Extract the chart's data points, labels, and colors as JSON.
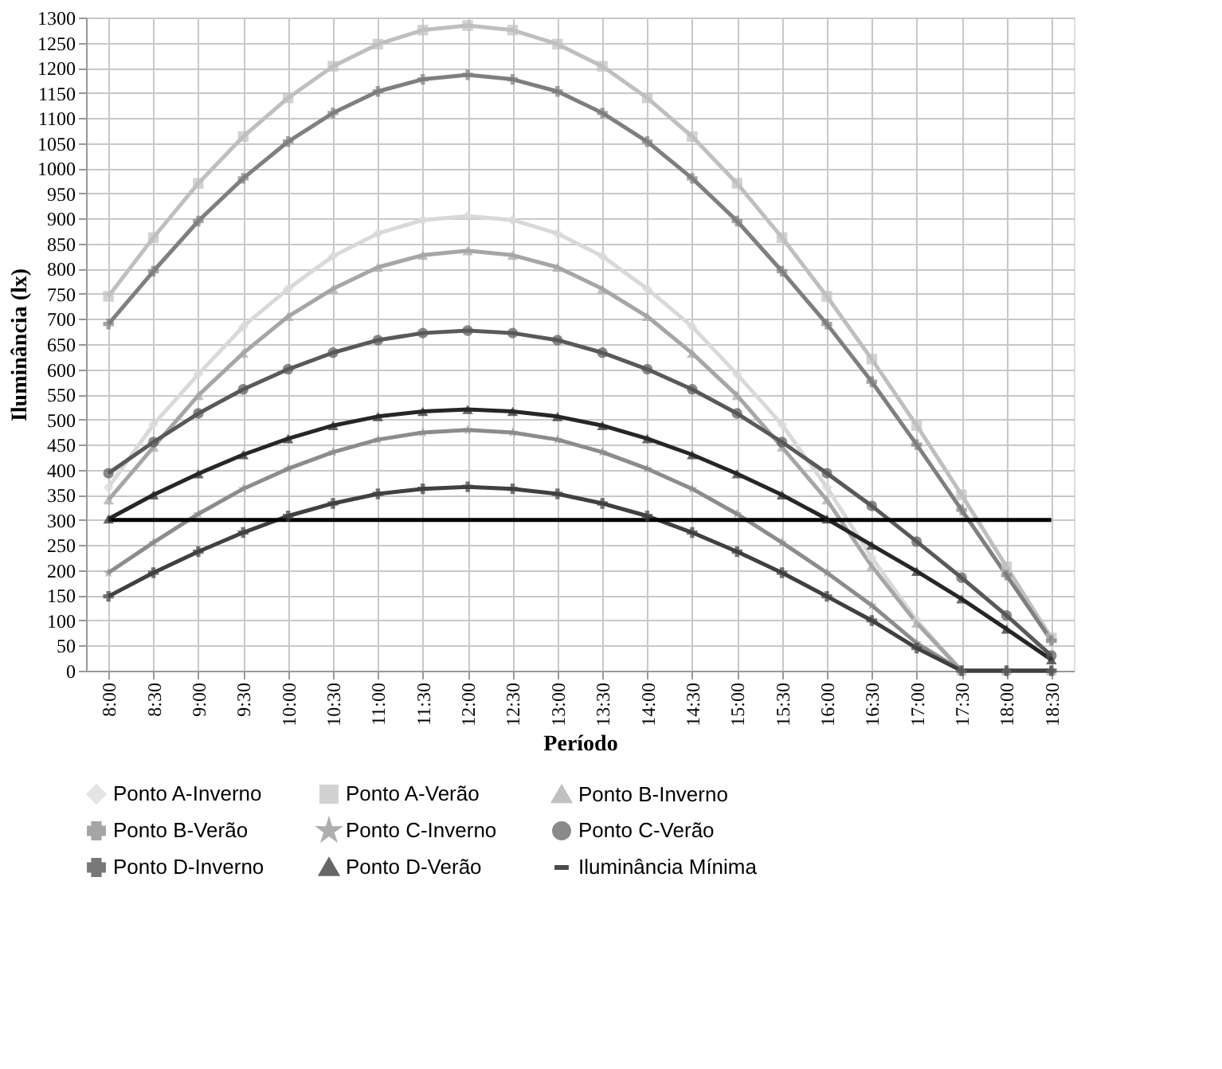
{
  "chart_data": {
    "type": "line",
    "xlabel": "Período",
    "ylabel": "Iluminância  (lx)",
    "categories": [
      "8:00",
      "8:30",
      "9:00",
      "9:30",
      "10:00",
      "10:30",
      "11:00",
      "11:30",
      "12:00",
      "12:30",
      "13:00",
      "13:30",
      "14:00",
      "14:30",
      "15:00",
      "15:30",
      "16:00",
      "16:30",
      "17:00",
      "17:30",
      "18:00",
      "18:30"
    ],
    "ylim": [
      0,
      1300
    ],
    "yticks": [
      0,
      50,
      100,
      150,
      200,
      250,
      300,
      350,
      400,
      450,
      500,
      550,
      600,
      650,
      700,
      750,
      800,
      850,
      900,
      950,
      1000,
      1050,
      1100,
      1150,
      1200,
      1250,
      1300
    ],
    "grid": true,
    "legend": "bottom",
    "series": [
      {
        "name": "Ponto A-Inverno",
        "color": "#d9d9d9",
        "marker": "diamond",
        "values": [
          365,
          490,
          590,
          685,
          760,
          825,
          870,
          897,
          905,
          897,
          870,
          825,
          760,
          685,
          590,
          490,
          365,
          225,
          100,
          0,
          0,
          0
        ]
      },
      {
        "name": "Ponto A-Verão",
        "color": "#bfbfbf",
        "marker": "square",
        "values": [
          745,
          862,
          970,
          1063,
          1140,
          1203,
          1247,
          1275,
          1284,
          1275,
          1247,
          1203,
          1140,
          1063,
          970,
          862,
          745,
          620,
          488,
          350,
          207,
          65
        ]
      },
      {
        "name": "Ponto B-Inverno",
        "color": "#a6a6a6",
        "marker": "triangle",
        "values": [
          340,
          445,
          548,
          632,
          705,
          760,
          803,
          827,
          836,
          827,
          803,
          760,
          705,
          632,
          548,
          445,
          340,
          208,
          95,
          0,
          0,
          0
        ]
      },
      {
        "name": "Ponto B-Verão",
        "color": "#7f7f7f",
        "marker": "cross",
        "values": [
          690,
          795,
          895,
          980,
          1053,
          1110,
          1153,
          1177,
          1186,
          1177,
          1153,
          1110,
          1053,
          980,
          895,
          795,
          690,
          575,
          450,
          320,
          190,
          60
        ]
      },
      {
        "name": "Ponto C-Inverno",
        "color": "#8c8c8c",
        "marker": "star",
        "values": [
          195,
          255,
          312,
          362,
          402,
          435,
          460,
          474,
          479,
          474,
          460,
          435,
          402,
          362,
          312,
          255,
          195,
          130,
          55,
          0,
          0,
          0
        ]
      },
      {
        "name": "Ponto C-Verão",
        "color": "#595959",
        "marker": "circle",
        "values": [
          393,
          455,
          512,
          560,
          600,
          633,
          658,
          672,
          677,
          672,
          658,
          633,
          600,
          560,
          512,
          455,
          393,
          328,
          257,
          185,
          110,
          30
        ]
      },
      {
        "name": "Ponto D-Inverno",
        "color": "#404040",
        "marker": "cross",
        "values": [
          148,
          195,
          237,
          275,
          308,
          333,
          352,
          362,
          366,
          362,
          352,
          333,
          308,
          275,
          237,
          195,
          148,
          100,
          45,
          0,
          0,
          0
        ]
      },
      {
        "name": "Ponto D-Verão",
        "color": "#262626",
        "marker": "triangle",
        "values": [
          302,
          350,
          392,
          430,
          462,
          488,
          506,
          516,
          520,
          516,
          506,
          488,
          462,
          430,
          392,
          350,
          302,
          250,
          198,
          143,
          83,
          22
        ]
      },
      {
        "name": "Iluminância Mínima",
        "color": "#000000",
        "marker": "none",
        "values": [
          300,
          300,
          300,
          300,
          300,
          300,
          300,
          300,
          300,
          300,
          300,
          300,
          300,
          300,
          300,
          300,
          300,
          300,
          300,
          300,
          300,
          300
        ]
      }
    ]
  }
}
